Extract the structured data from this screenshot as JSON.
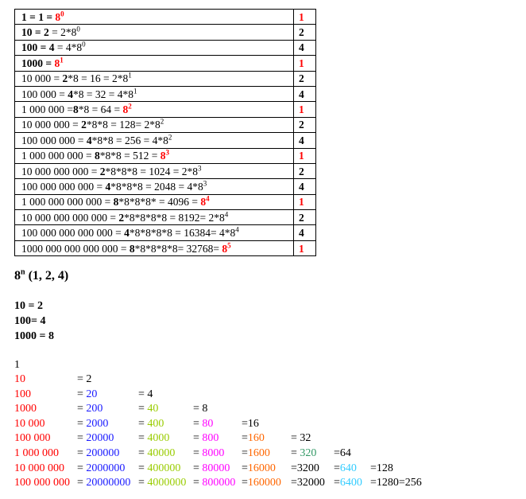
{
  "table_rows": [
    {
      "a": "1 = 1 = ",
      "ab": true,
      "p": "0",
      "r": "1",
      "red": true
    },
    {
      "a": "10 = 2",
      "ab": true,
      "b": " = 2*8",
      "bsup": "0",
      "r": "2",
      "red": false
    },
    {
      "a": "100 = 4",
      "ab": true,
      "b": " = 4*8",
      "bsup": "0",
      "r": "4",
      "red": false
    },
    {
      "a": "1000 = ",
      "ab": true,
      "p": "1",
      "r": "1",
      "red": true
    },
    {
      "a": "10 000 = ",
      "ab": false,
      "m": "2",
      "b": "*8 = 16 = 2*8",
      "bsup": "1",
      "r": "2",
      "red": false
    },
    {
      "a": "100 000 = ",
      "ab": false,
      "m": "4",
      "b": "*8 = 32 = 4*8",
      "bsup": "1",
      "r": "4",
      "red": false
    },
    {
      "a": "1 000 000 =",
      "ab": false,
      "m": "8",
      "b": "*8 = 64 = ",
      "p": "2",
      "r": "1",
      "red": true
    },
    {
      "a": "10 000 000 = ",
      "ab": false,
      "m": "2",
      "b": "*8*8 = 128= 2*8",
      "bsup": "2",
      "r": "2",
      "red": false
    },
    {
      "a": "100 000 000 = ",
      "ab": false,
      "m": "4",
      "b": "*8*8 = 256 = 4*8",
      "bsup": "2",
      "r": "4",
      "red": false
    },
    {
      "a": "1 000 000 000 = ",
      "ab": false,
      "m": "8",
      "b": "*8*8 = 512 = ",
      "p": "3",
      "r": "1",
      "red": true
    },
    {
      "a": "10 000 000 000 = ",
      "ab": false,
      "m": "2",
      "b": "*8*8*8 = 1024 = 2*8",
      "bsup": "3",
      "r": "2",
      "red": false
    },
    {
      "a": "100 000 000 000 = ",
      "ab": false,
      "m": "4",
      "b": "*8*8*8 = 2048 = 4*8",
      "bsup": "3",
      "r": "4",
      "red": false
    },
    {
      "a": "1 000 000 000 000 = ",
      "ab": false,
      "m": "8",
      "b": "*8*8*8* = 4096 = ",
      "p": "4",
      "r": "1",
      "red": true
    },
    {
      "a": "10 000 000 000 000 = ",
      "ab": false,
      "m": "2",
      "b": "*8*8*8*8 = 8192= 2*8",
      "bsup": "4",
      "r": "2",
      "red": false
    },
    {
      "a": "100 000 000 000 000 = ",
      "ab": false,
      "m": "4",
      "b": "*8*8*8*8 = 16384= 4*8",
      "bsup": "4",
      "r": "4",
      "red": false
    },
    {
      "a": "1000 000 000 000 000 = ",
      "ab": false,
      "m": "8",
      "b": "*8*8*8*8= 32768= ",
      "p": "5",
      "r": "1",
      "red": true
    }
  ],
  "heading": {
    "base": "8",
    "exp": "n",
    "rest": " (1, 2, 4)"
  },
  "equations": [
    "10 = 2",
    "100= 4",
    "1000 = 8"
  ],
  "grid_first_line": "1",
  "grid_rows": [
    [
      {
        "t": "10",
        "col": "#ff0000"
      },
      {
        "t": "= 2",
        "col": "#000000"
      }
    ],
    [
      {
        "t": "100",
        "col": "#ff0000"
      },
      {
        "t": "= ",
        "col": "#000000",
        "t2": "20",
        "col2": "#1a1aff"
      },
      {
        "t": "= 4",
        "col": "#000000"
      }
    ],
    [
      {
        "t": "1000",
        "col": "#ff0000"
      },
      {
        "t": "= ",
        "col": "#000000",
        "t2": "200",
        "col2": "#1a1aff"
      },
      {
        "t": "= ",
        "col": "#000000",
        "t2": "40",
        "col2": "#99cc00"
      },
      {
        "t": "= 8",
        "col": "#000000"
      }
    ],
    [
      {
        "t": "10 000",
        "col": "#ff0000"
      },
      {
        "t": "= ",
        "col": "#000000",
        "t2": "2000",
        "col2": "#1a1aff"
      },
      {
        "t": "= ",
        "col": "#000000",
        "t2": "400",
        "col2": "#99cc00"
      },
      {
        "t": "= ",
        "col": "#000000",
        "t2": "80",
        "col2": "#ff00ff"
      },
      {
        "t": "=16",
        "col": "#000000"
      }
    ],
    [
      {
        "t": "100 000",
        "col": "#ff0000"
      },
      {
        "t": "= ",
        "col": "#000000",
        "t2": "20000",
        "col2": "#1a1aff"
      },
      {
        "t": "= ",
        "col": "#000000",
        "t2": "4000",
        "col2": "#99cc00"
      },
      {
        "t": "= ",
        "col": "#000000",
        "t2": "800",
        "col2": "#ff00ff"
      },
      {
        "t": "=",
        "col": "#000000",
        "t2": "160",
        "col2": "#ff6600"
      },
      {
        "t": "= 32",
        "col": "#000000"
      }
    ],
    [
      {
        "t": "1 000 000",
        "col": "#ff0000"
      },
      {
        "t": "= ",
        "col": "#000000",
        "t2": "200000",
        "col2": "#1a1aff"
      },
      {
        "t": "= ",
        "col": "#000000",
        "t2": "40000",
        "col2": "#99cc00"
      },
      {
        "t": "= ",
        "col": "#000000",
        "t2": "8000",
        "col2": "#ff00ff"
      },
      {
        "t": "=",
        "col": "#000000",
        "t2": "1600",
        "col2": "#ff6600"
      },
      {
        "t": "= ",
        "col": "#000000",
        "t2": "320",
        "col2": "#339966"
      },
      {
        "t": "=64",
        "col": "#000000"
      }
    ],
    [
      {
        "t": "10 000 000",
        "col": "#ff0000"
      },
      {
        "t": "= ",
        "col": "#000000",
        "t2": "2000000",
        "col2": "#1a1aff"
      },
      {
        "t": "= ",
        "col": "#000000",
        "t2": "400000",
        "col2": "#99cc00"
      },
      {
        "t": "= ",
        "col": "#000000",
        "t2": "80000",
        "col2": "#ff00ff"
      },
      {
        "t": "=",
        "col": "#000000",
        "t2": "16000",
        "col2": "#ff6600"
      },
      {
        "t": "=3200",
        "col": "#000000"
      },
      {
        "t": "=",
        "col": "#000000",
        "t2": "640",
        "col2": "#33ccff"
      },
      {
        "t": "=128",
        "col": "#000000"
      }
    ],
    [
      {
        "t": "100 000 000",
        "col": "#ff0000"
      },
      {
        "t": "= ",
        "col": "#000000",
        "t2": "20000000",
        "col2": "#1a1aff"
      },
      {
        "t": "= ",
        "col": "#000000",
        "t2": "4000000",
        "col2": "#99cc00"
      },
      {
        "t": "= ",
        "col": "#000000",
        "t2": "800000",
        "col2": "#ff00ff"
      },
      {
        "t": "=",
        "col": "#000000",
        "t2": "160000",
        "col2": "#ff6600"
      },
      {
        "t": "=32000",
        "col": "#000000"
      },
      {
        "t": "=",
        "col": "#000000",
        "t2": "6400",
        "col2": "#33ccff"
      },
      {
        "t": "=1280=256",
        "col": "#000000"
      }
    ]
  ]
}
